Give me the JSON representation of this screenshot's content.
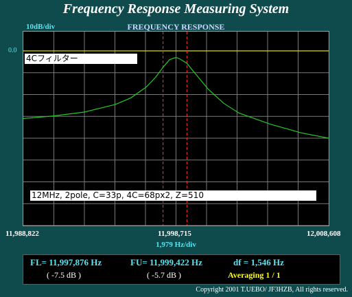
{
  "title": "Frequency Response Measuring System",
  "scale_label": "10dB/div",
  "subtitle": "FREQUENCY RESPONSE",
  "ref_level": "0.0",
  "plot": {
    "filter_name": "4Cフィルター",
    "config_note": "12MHz, 2pole,  C=33p, 4C=68px2, Z=510",
    "colors": {
      "grid": "#7a7a7a",
      "trace": "#22cc22",
      "ref_line": "#dddd00",
      "marker": "#ff3030"
    }
  },
  "chart_data": {
    "type": "line",
    "xlabel": "1,979  Hz/div",
    "ylabel": "10dB/div",
    "x_ticks": [
      "11,988,822",
      "11,998,715",
      "12,008,608"
    ],
    "xlim": [
      11988822,
      12008608
    ],
    "ylim": [
      -80,
      0
    ],
    "grid": true,
    "series": [
      {
        "x": [
          11988822,
          11990800,
          11992800,
          11994800,
          11995800,
          11996800,
          11997400,
          11997876,
          11998300,
          11998715,
          11999000,
          11999422,
          11999800,
          12000800,
          12001800,
          12002800,
          12004800,
          12006800,
          12008608
        ],
        "y": [
          -31,
          -29.8,
          -28,
          -24.5,
          -21.5,
          -16.5,
          -12,
          -7.5,
          -4,
          -3,
          -3.8,
          -5.7,
          -9,
          -17.5,
          -24,
          -28.5,
          -33.5,
          -37.5,
          -40
        ]
      }
    ],
    "markers": [
      {
        "name": "FL",
        "x": 11997876
      },
      {
        "name": "FU",
        "x": 11999422
      }
    ]
  },
  "x_ticks": {
    "left": "11,988,822",
    "center": "11,998,715",
    "right": "12,008,608"
  },
  "hz_per_div": "1,979  Hz/div",
  "results": {
    "fl": "FL= 11,997,876  Hz",
    "fu": "FU= 11,999,422  Hz",
    "df": "df = 1,546  Hz",
    "fl_db": "( -7.5 dB )",
    "fu_db": "( -5.7 dB )",
    "averaging": "Averaging   1 / 1"
  },
  "copyright": "Copyright 2001 T.UEBO/ JF3HZB, All rights reserved."
}
